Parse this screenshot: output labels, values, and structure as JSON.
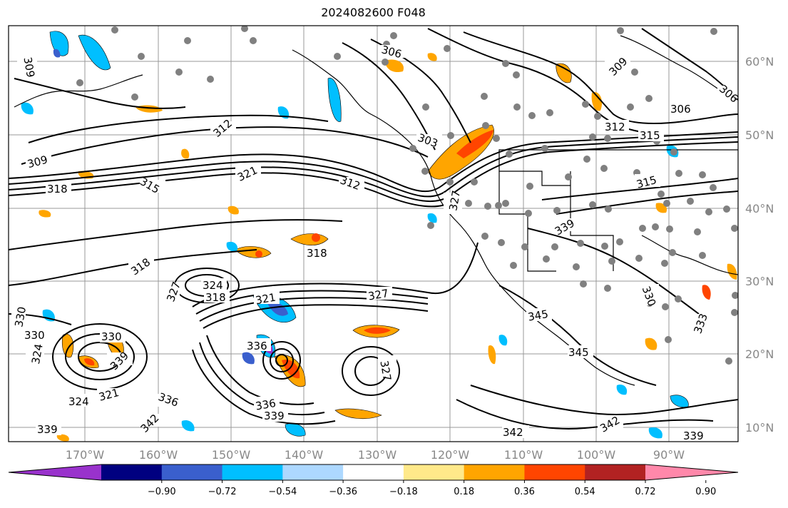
{
  "title": "2024082600 F048",
  "lat_labels": [
    "60°N",
    "50°N",
    "40°N",
    "30°N",
    "20°N",
    "10°N"
  ],
  "lon_labels": [
    "170°W",
    "160°W",
    "150°W",
    "140°W",
    "130°W",
    "120°W",
    "110°W",
    "100°W",
    "90°W"
  ],
  "colorbar": {
    "ticks": [
      "−0.90",
      "−0.72",
      "−0.54",
      "−0.36",
      "−0.18",
      "0.18",
      "0.36",
      "0.54",
      "0.72",
      "0.90"
    ],
    "colors": [
      "#9932cc",
      "#000080",
      "#3a5fcd",
      "#00bfff",
      "#add8ff",
      "#ffffff",
      "#ffe98a",
      "#ffa500",
      "#ff4500",
      "#b22222",
      "#ff88aa"
    ]
  },
  "contour_labels": [
    {
      "text": "306"
    },
    {
      "text": "309"
    },
    {
      "text": "306"
    },
    {
      "text": "312"
    },
    {
      "text": "315"
    },
    {
      "text": "309"
    },
    {
      "text": "318"
    },
    {
      "text": "315"
    },
    {
      "text": "321"
    },
    {
      "text": "312"
    },
    {
      "text": "303"
    },
    {
      "text": "327"
    },
    {
      "text": "318"
    },
    {
      "text": "318"
    },
    {
      "text": "324"
    },
    {
      "text": "327"
    },
    {
      "text": "318"
    },
    {
      "text": "321"
    },
    {
      "text": "327"
    },
    {
      "text": "330"
    },
    {
      "text": "330"
    },
    {
      "text": "324"
    },
    {
      "text": "330"
    },
    {
      "text": "339"
    },
    {
      "text": "336"
    },
    {
      "text": "327"
    },
    {
      "text": "321"
    },
    {
      "text": "324"
    },
    {
      "text": "336"
    },
    {
      "text": "342"
    },
    {
      "text": "339"
    },
    {
      "text": "336"
    },
    {
      "text": "339"
    },
    {
      "text": "342"
    },
    {
      "text": "345"
    },
    {
      "text": "345"
    },
    {
      "text": "342"
    },
    {
      "text": "339"
    },
    {
      "text": "333"
    },
    {
      "text": "306"
    },
    {
      "text": "309"
    },
    {
      "text": "312"
    },
    {
      "text": "315"
    },
    {
      "text": "339"
    },
    {
      "text": "330"
    }
  ]
}
